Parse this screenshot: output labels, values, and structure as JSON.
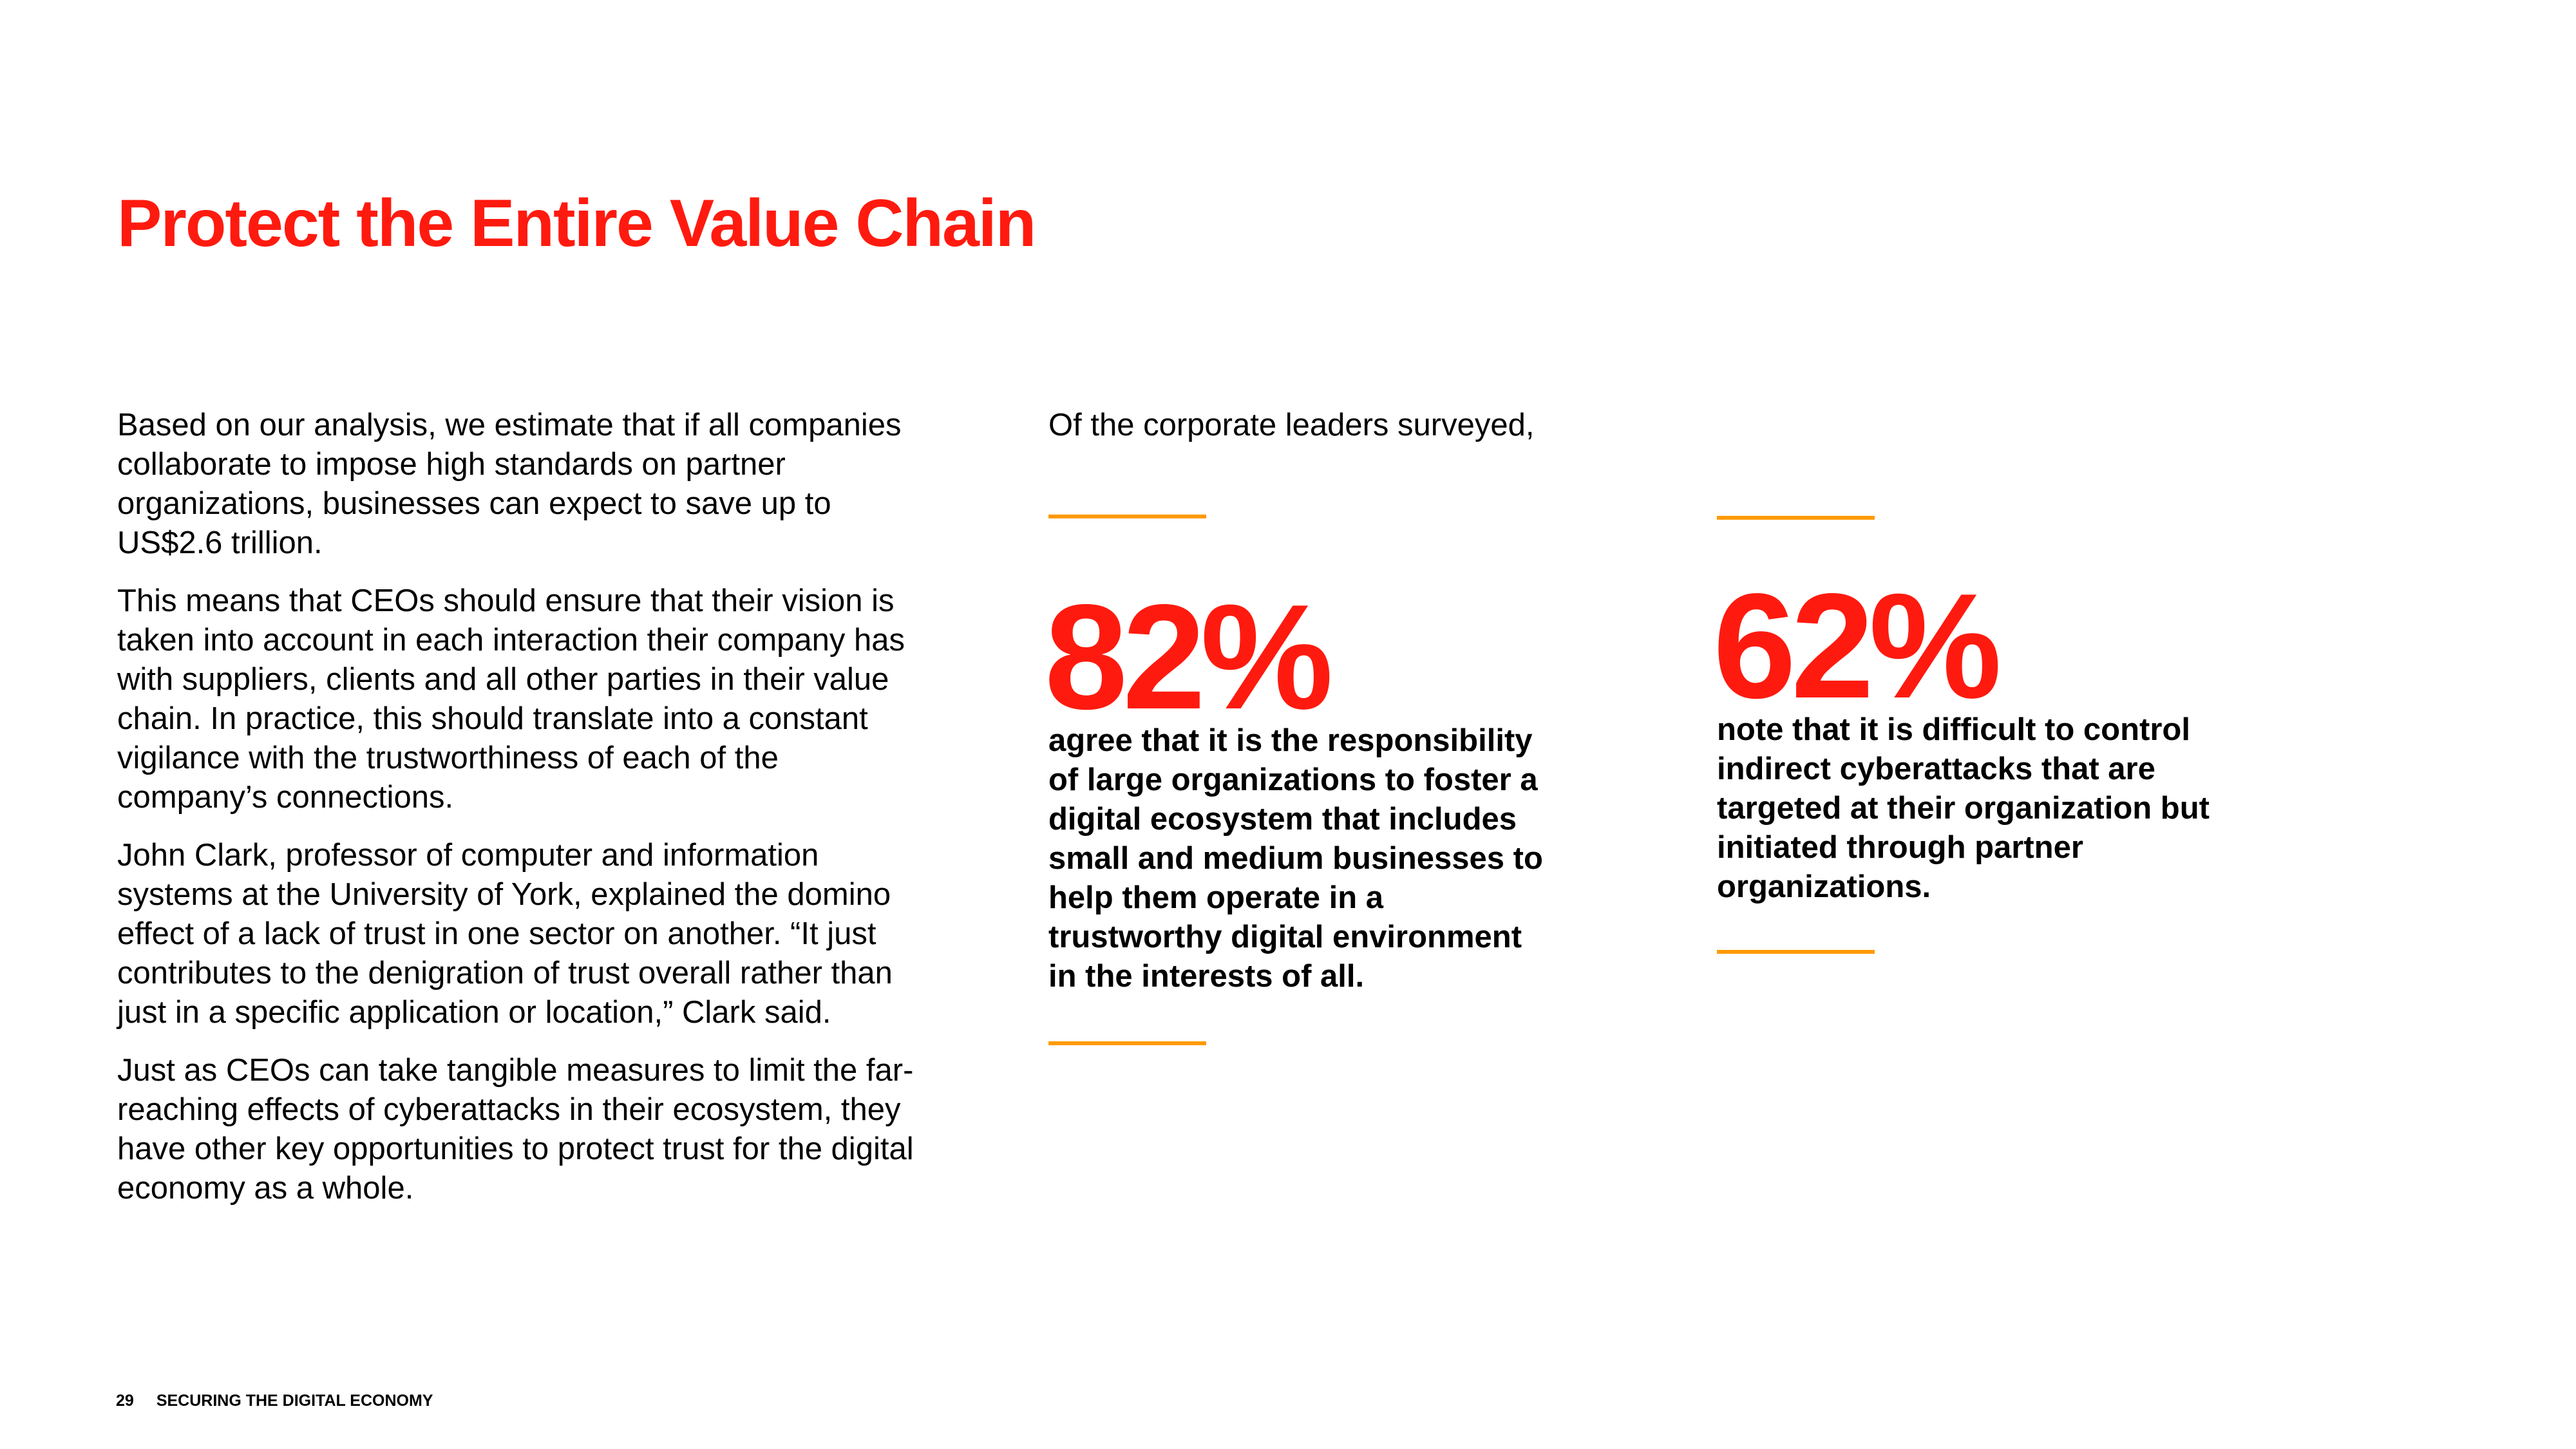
{
  "title": "Protect the Entire Value Chain",
  "body_paragraphs": [
    "Based on our analysis, we estimate that if all companies collaborate to impose high standards on partner organizations, businesses can expect to save up to US$2.6 trillion.",
    "This means that CEOs should ensure that their vision is taken into account in each interaction their company has with suppliers, clients and all other parties in their value chain. In practice, this should translate into a constant vigilance with the trustworthiness of each of the company’s connections.",
    "John Clark, professor of computer and information systems at the University of York, explained the domino effect of a lack of trust in one sector on another. “It just contributes to the denigration of trust overall rather than just in a specific application or location,” Clark said.",
    "Just as CEOs can take tangible measures to limit the far-reaching effects of cyberattacks in their ecosystem, they have other key opportunities to protect trust for the digital economy as a whole."
  ],
  "stats": {
    "intro": "Of the corporate leaders surveyed,",
    "items": [
      {
        "value": "82%",
        "text": "agree that it is the responsibility of large organizations to foster a digital ecosystem that includes small and medium businesses to help them operate in a trustworthy digital environment in the interests of all."
      },
      {
        "value": "62%",
        "text": "note that it is difficult to control indirect cyberattacks that are targeted at their organization but initiated through partner organizations."
      }
    ]
  },
  "footer": {
    "page_number": "29",
    "publication": "SECURING THE DIGITAL ECONOMY"
  },
  "colors": {
    "title": "#ff1a0f",
    "stat_value": "#ff1a0f",
    "rule": "#ff9a00",
    "text": "#000000",
    "background": "#ffffff"
  }
}
